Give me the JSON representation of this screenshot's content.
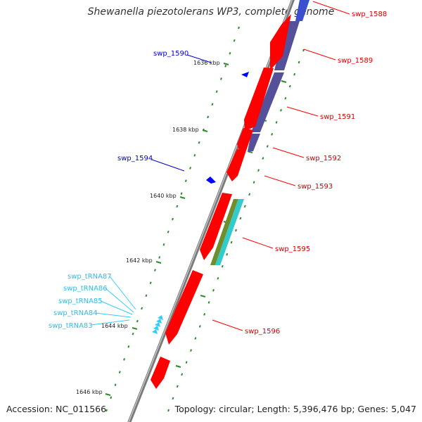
{
  "title": "Shewanella piezotolerans WP3, complete genome",
  "accession": "Accession: NC_011566",
  "topology": "Topology: circular; Length: 5,396,476 bp; Genes: 5,047",
  "colors": {
    "backbone": "#8c8c8c",
    "cds": "#ff0000",
    "cds_minus_label": "#0000cc",
    "trna": "#33ccff",
    "blast_purple": "#55509a",
    "blast_green": "#6f8f2f",
    "blast_cyan": "#33cccc",
    "tick": "#2e8b2e"
  },
  "kbp_labels": [
    "1636 kbp",
    "1638 kbp",
    "1640 kbp",
    "1642 kbp",
    "1644 kbp",
    "1646 kbp"
  ],
  "labels_right": [
    "swp_1588",
    "swp_1589",
    "swp_1591",
    "swp_1592",
    "swp_1593",
    "swp_1595",
    "swp_1596"
  ],
  "labels_left_blue": [
    "swp_1590",
    "swp_1594"
  ],
  "labels_trna": [
    "swp_tRNA87",
    "swp_tRNA86",
    "swp_tRNA85",
    "swp_tRNA84",
    "swp_tRNA83"
  ]
}
